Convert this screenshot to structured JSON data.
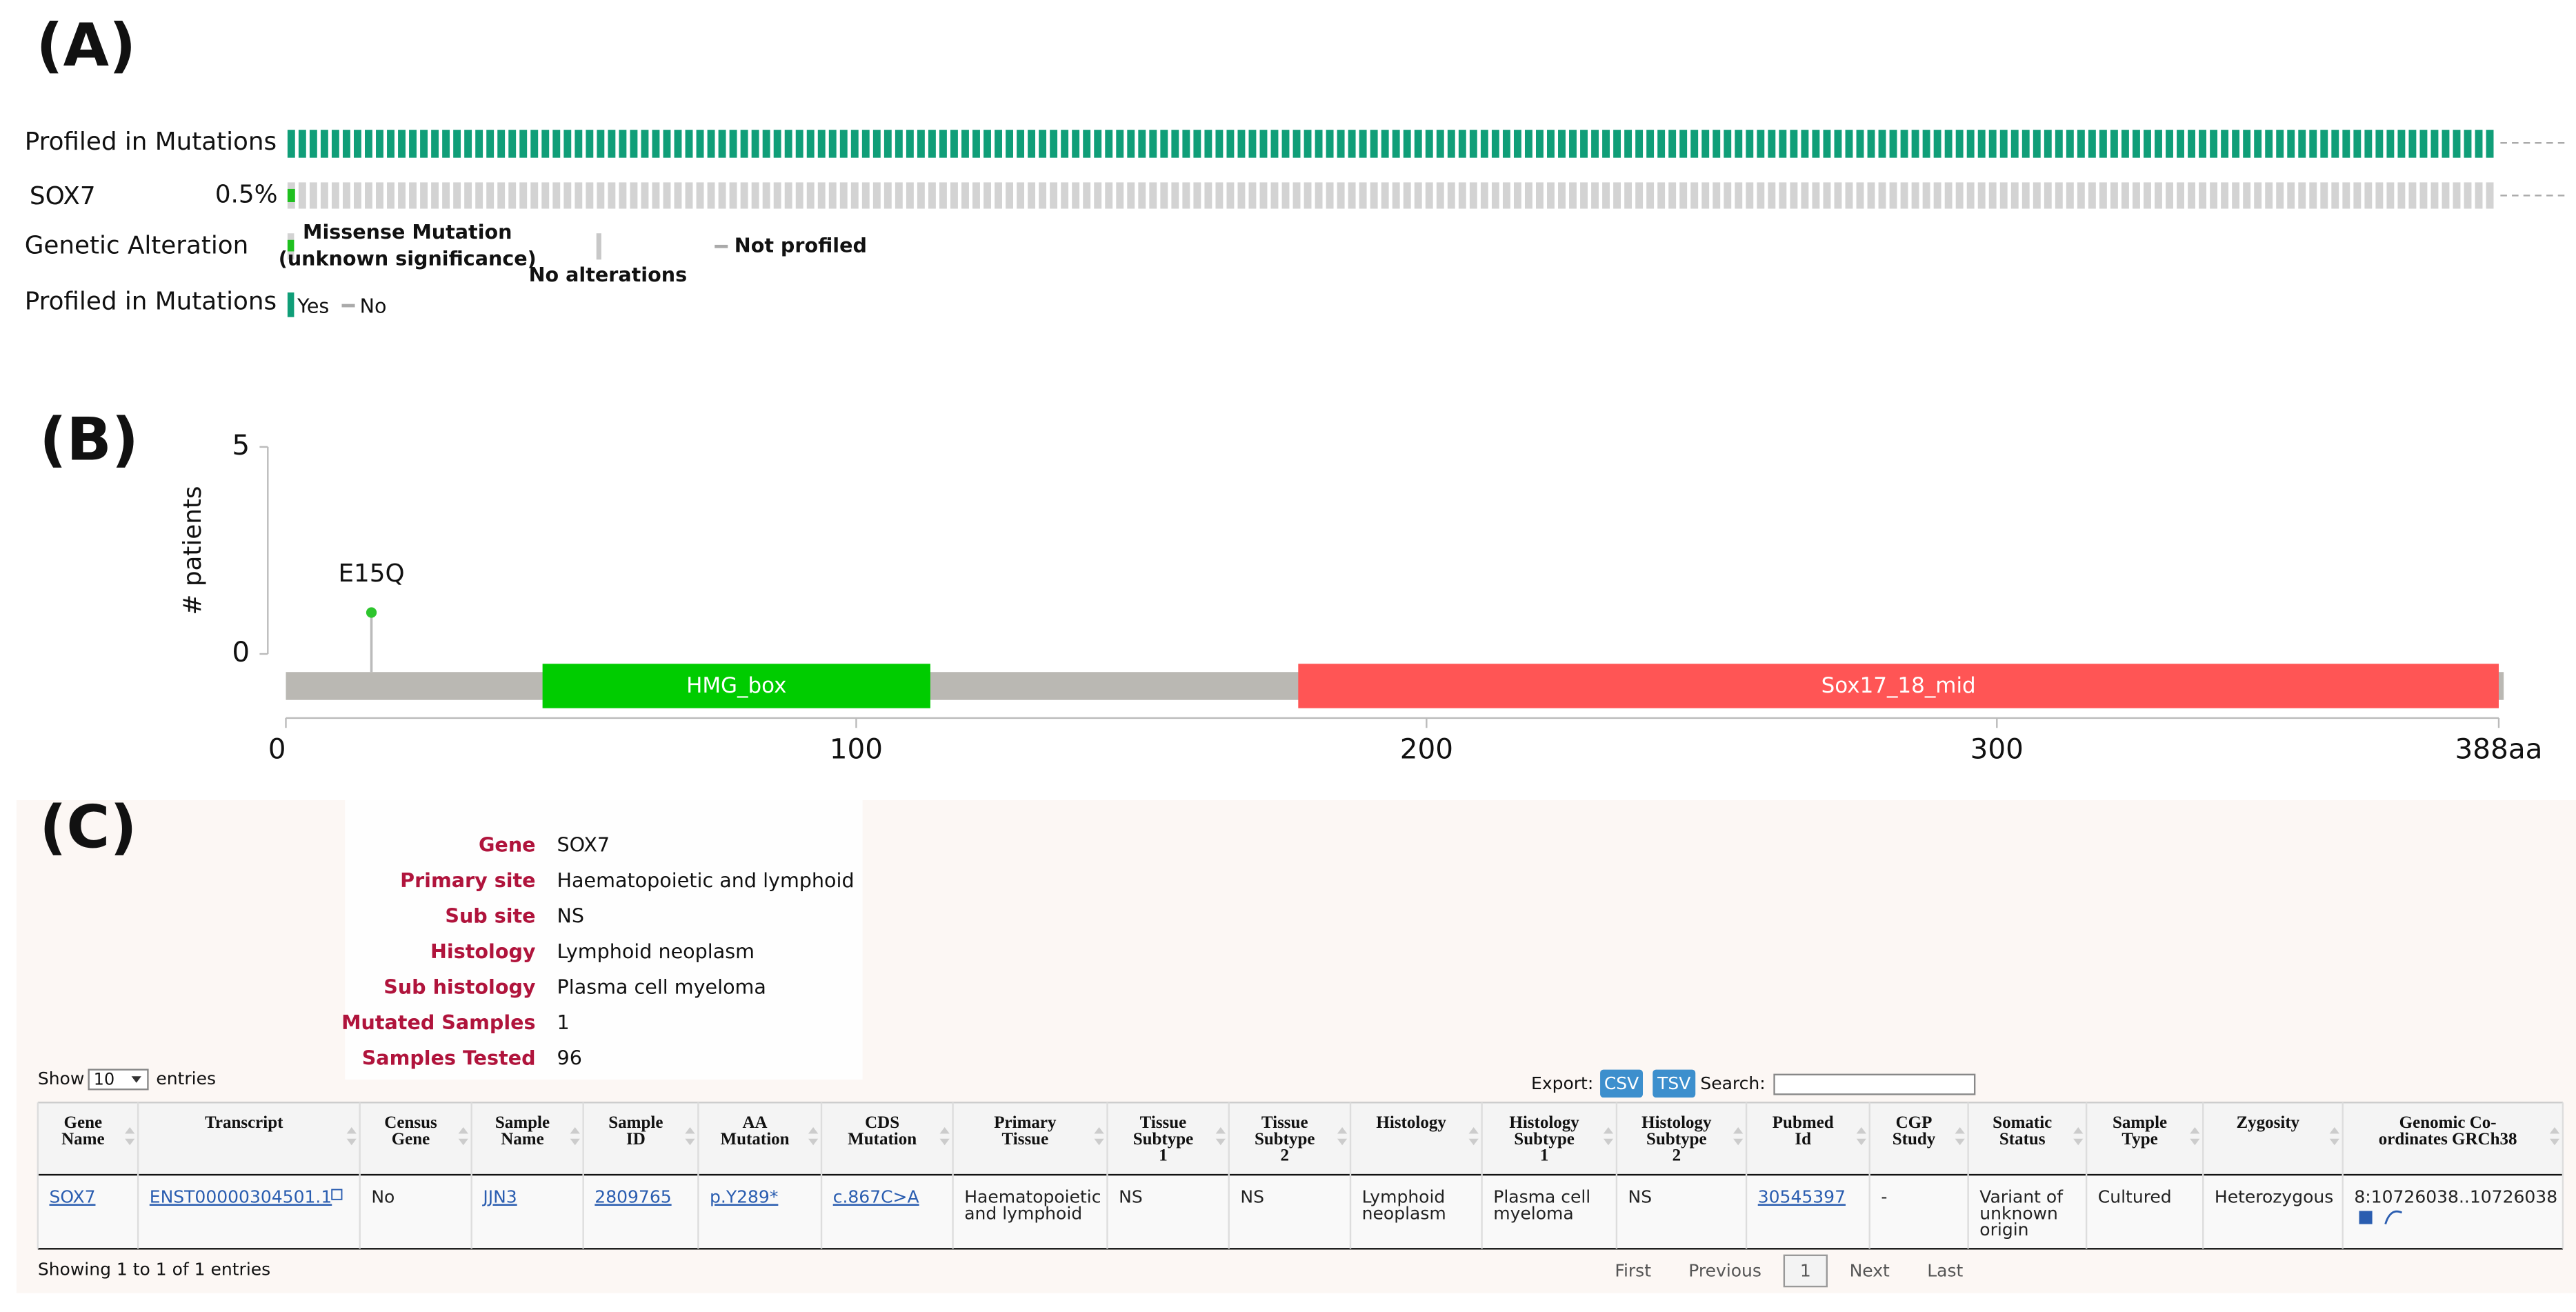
{
  "panel_a": {
    "label": "(A)",
    "track_profiled": "Profiled in Mutations",
    "gene": "SOX7",
    "gene_freq": "0.5%",
    "legend_alteration": {
      "title": "Genetic Alteration",
      "items": [
        [
          "Missense Mutation",
          "(unknown significance)"
        ],
        [
          "No alterations"
        ],
        [
          "Not profiled"
        ]
      ]
    },
    "legend_profiled": {
      "title": "Profiled in Mutations",
      "items": [
        "Yes",
        "No"
      ]
    }
  },
  "chart_data": {
    "type": "lollipop",
    "label": "(B)",
    "ylabel": "# patients",
    "ylim": [
      0,
      5
    ],
    "yticks": [
      0,
      5
    ],
    "xlim": [
      0,
      388
    ],
    "xticks": [
      0,
      100,
      200,
      300,
      {
        "value": 388,
        "label": "388aa"
      }
    ],
    "mutations": [
      {
        "label": "E15Q",
        "x": 15,
        "value": 1,
        "color": "#2dc52d"
      }
    ],
    "domains": [
      {
        "name": "HMG_box",
        "start": 45,
        "end": 113,
        "color": "#00cc00"
      },
      {
        "name": "Sox17_18_mid",
        "start": 177.5,
        "end": 388,
        "color": "#ff5555"
      }
    ]
  },
  "panel_c": {
    "label": "(C)",
    "info": [
      [
        "Gene",
        "SOX7"
      ],
      [
        "Primary site",
        "Haematopoietic and lymphoid"
      ],
      [
        "Sub site",
        "NS"
      ],
      [
        "Histology",
        "Lymphoid neoplasm"
      ],
      [
        "Sub histology",
        "Plasma cell myeloma"
      ],
      [
        "Mutated Samples",
        "1"
      ],
      [
        "Samples Tested",
        "96"
      ]
    ],
    "show": [
      "Show",
      "10",
      "entries"
    ],
    "export": "Export:",
    "buttons": [
      "CSV",
      "TSV"
    ],
    "search": "Search:",
    "table": {
      "headers": [
        [
          "Gene",
          "Name"
        ],
        [
          "Transcript"
        ],
        [
          "Census",
          "Gene"
        ],
        [
          "Sample",
          "Name"
        ],
        [
          "Sample",
          "ID"
        ],
        [
          "AA",
          "Mutation"
        ],
        [
          "CDS",
          "Mutation"
        ],
        [
          "Primary",
          "Tissue"
        ],
        [
          "Tissue",
          "Subtype",
          "1"
        ],
        [
          "Tissue",
          "Subtype",
          "2"
        ],
        [
          "Histology"
        ],
        [
          "Histology",
          "Subtype",
          "1"
        ],
        [
          "Histology",
          "Subtype",
          "2"
        ],
        [
          "Pubmed",
          "Id"
        ],
        [
          "CGP",
          "Study"
        ],
        [
          "Somatic",
          "Status"
        ],
        [
          "Sample",
          "Type"
        ],
        [
          "Zygosity"
        ],
        [
          "Genomic Co-",
          "ordinates GRCh38"
        ]
      ],
      "rows": [
        [
          [
            "SOX7"
          ],
          [
            "ENST00000304501.1"
          ],
          [
            "No"
          ],
          [
            "JJN3"
          ],
          [
            "2809765"
          ],
          [
            "p.Y289*"
          ],
          [
            "c.867C>A"
          ],
          [
            "Haematopoietic",
            "and lymphoid"
          ],
          [
            "NS"
          ],
          [
            "NS"
          ],
          [
            "Lymphoid",
            "neoplasm"
          ],
          [
            "Plasma cell",
            "myeloma"
          ],
          [
            "NS"
          ],
          [
            "30545397"
          ],
          [
            "-"
          ],
          [
            "Variant of",
            "unknown",
            "origin"
          ],
          [
            "Cultured"
          ],
          [
            "Heterozygous"
          ],
          [
            "8:10726038..10726038"
          ]
        ]
      ]
    },
    "footer": "Showing 1 to 1 of 1 entries",
    "pager": [
      "First",
      "Previous",
      "1",
      "Next",
      "Last"
    ]
  }
}
